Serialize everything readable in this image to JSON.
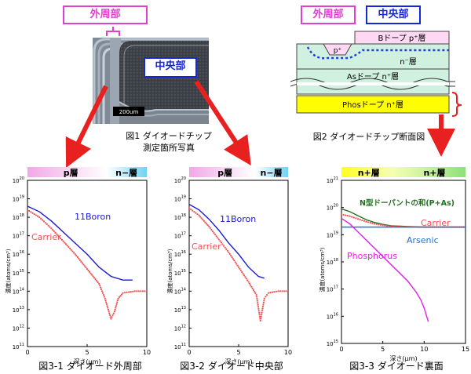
{
  "fig1": {
    "label_outer": "外周部",
    "label_center": "中央部",
    "scale_bar": "200um",
    "caption_line1": "図1 ダイオードチップ",
    "caption_line2": "測定箇所写真"
  },
  "fig2": {
    "label_outer": "外周部",
    "label_center": "中央部",
    "layer_b": "Bドープ p⁺層",
    "layer_p": "p⁺",
    "layer_n_minus": "n⁻層",
    "layer_as": "Asドープ n⁺層",
    "layer_phos": "Phosドープ n⁺層",
    "caption": "図2 ダイオードチップ断面図"
  },
  "colors": {
    "pink": "#e040d0",
    "blue": "#1428d8",
    "red_arrow": "#e82020",
    "boron": "#1a1ad0",
    "carrier": "#f05050",
    "arsenic": "#2070e0",
    "phosphorus": "#e020e0",
    "sum": "#207020"
  },
  "charts": [
    {
      "caption": "図3-1 ダイオード外周部",
      "band_left": "p層",
      "band_right": "n−層",
      "ylabel": "濃度(atoms/cm³)",
      "xlabel": "深さ(μm)",
      "series_labels": [
        "11Boron",
        "Carrier"
      ]
    },
    {
      "caption": "図3-2 ダイオード中央部",
      "band_left": "p層",
      "band_right": "n−層",
      "ylabel": "濃度(atoms/cm³)",
      "xlabel": "深さ(μm)",
      "series_labels": [
        "11Boron",
        "Carrier"
      ]
    },
    {
      "caption": "図3-3 ダイオード裏面",
      "band_left": "n+層",
      "band_right": "n+層",
      "ylabel": "濃度(atoms/cm³)",
      "xlabel": "深さ(μm)",
      "series_labels": [
        "N型ドーパントの和(P+As)",
        "Carrier",
        "Arsenic",
        "Phosphorus"
      ]
    }
  ],
  "chart_data": [
    {
      "type": "line",
      "title": "図3-1 ダイオード外周部",
      "xlabel": "深さ(μm)",
      "ylabel": "濃度(atoms/cm³)",
      "xlim": [
        0,
        10
      ],
      "ylim_exp": [
        11,
        20
      ],
      "log_y": true,
      "x_ticks": [
        0,
        5,
        10
      ],
      "y_tick_exponents": [
        11,
        12,
        13,
        14,
        15,
        16,
        17,
        18,
        19,
        20
      ],
      "series": [
        {
          "name": "11Boron",
          "x": [
            0,
            1,
            2,
            3,
            4,
            5,
            6,
            7,
            8,
            8.8
          ],
          "log10_y": [
            18.6,
            18.3,
            17.8,
            17.2,
            16.6,
            16.0,
            15.3,
            14.8,
            14.6,
            14.6
          ]
        },
        {
          "name": "Carrier",
          "x": [
            0,
            1,
            2,
            3,
            4,
            5,
            6,
            6.5,
            7.0,
            7.3,
            7.6,
            8.0,
            9.0,
            10.0
          ],
          "log10_y": [
            18.4,
            18.0,
            17.4,
            16.7,
            16.0,
            15.2,
            14.4,
            13.6,
            12.5,
            12.9,
            13.6,
            13.9,
            14.0,
            14.0
          ]
        }
      ]
    },
    {
      "type": "line",
      "title": "図3-2 ダイオード中央部",
      "xlabel": "深さ(μm)",
      "ylabel": "濃度(atoms/cm³)",
      "xlim": [
        0,
        10
      ],
      "ylim_exp": [
        11,
        20
      ],
      "log_y": true,
      "x_ticks": [
        0,
        5,
        10
      ],
      "y_tick_exponents": [
        11,
        12,
        13,
        14,
        15,
        16,
        17,
        18,
        19,
        20
      ],
      "series": [
        {
          "name": "11Boron",
          "x": [
            0,
            1,
            2,
            3,
            4,
            5,
            6,
            7,
            7.6
          ],
          "log10_y": [
            18.7,
            18.4,
            17.9,
            17.3,
            16.6,
            16.0,
            15.3,
            14.8,
            14.7
          ]
        },
        {
          "name": "Carrier",
          "x": [
            0,
            1,
            2,
            3,
            4,
            5,
            6,
            6.8,
            7.2,
            7.6,
            8.0,
            9.0,
            10.0
          ],
          "log10_y": [
            18.5,
            18.1,
            17.5,
            16.8,
            16.1,
            15.3,
            14.5,
            13.8,
            12.4,
            13.6,
            13.9,
            14.0,
            14.0
          ]
        }
      ]
    },
    {
      "type": "line",
      "title": "図3-3 ダイオード裏面",
      "xlabel": "深さ(μm)",
      "ylabel": "濃度(atoms/cm³)",
      "xlim": [
        0,
        15
      ],
      "ylim_exp": [
        15,
        21
      ],
      "log_y": true,
      "x_ticks": [
        0,
        5,
        10,
        15
      ],
      "y_tick_exponents": [
        15,
        16,
        17,
        18,
        19,
        20,
        21
      ],
      "series": [
        {
          "name": "N型ドーパントの和(P+As)",
          "x": [
            0,
            1,
            2,
            3,
            4,
            5,
            6,
            8,
            10,
            12,
            15
          ],
          "log10_y": [
            19.95,
            19.85,
            19.7,
            19.55,
            19.45,
            19.38,
            19.33,
            19.3,
            19.28,
            19.28,
            19.28
          ]
        },
        {
          "name": "Carrier",
          "x": [
            0,
            1,
            2,
            3,
            4,
            5,
            6,
            8,
            10,
            12,
            15
          ],
          "log10_y": [
            19.75,
            19.68,
            19.58,
            19.48,
            19.4,
            19.35,
            19.31,
            19.29,
            19.28,
            19.28,
            19.28
          ]
        },
        {
          "name": "Arsenic",
          "x": [
            0,
            15
          ],
          "log10_y": [
            19.28,
            19.28
          ]
        },
        {
          "name": "Phosphorus",
          "x": [
            0,
            1,
            2,
            3,
            4,
            5,
            6,
            7,
            8,
            9,
            9.6,
            10.0,
            10.5
          ],
          "log10_y": [
            19.6,
            19.4,
            19.1,
            18.8,
            18.5,
            18.2,
            17.9,
            17.6,
            17.3,
            16.9,
            16.6,
            16.3,
            15.8
          ]
        }
      ]
    }
  ]
}
